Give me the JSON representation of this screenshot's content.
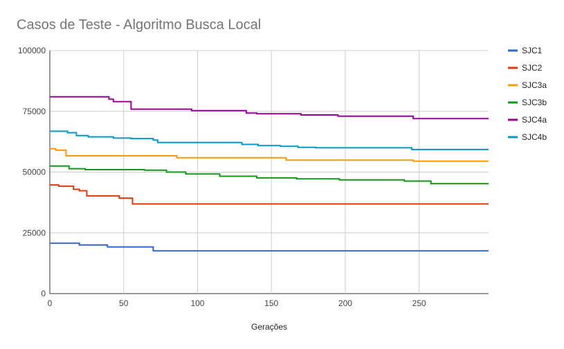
{
  "chart_data": {
    "type": "line",
    "title": "Casos de Teste - Algoritmo Busca Local",
    "xlabel": "Gerações",
    "ylabel": "",
    "xlim": [
      0,
      297
    ],
    "ylim": [
      0,
      100000
    ],
    "x_ticks": [
      0,
      50,
      100,
      150,
      200,
      250
    ],
    "y_ticks": [
      0,
      25000,
      50000,
      75000,
      100000
    ],
    "grid": true,
    "legend_position": "right",
    "series": [
      {
        "name": "SJC1",
        "color": "#3366cc",
        "points": [
          [
            0,
            20700
          ],
          [
            20,
            20700
          ],
          [
            20,
            20000
          ],
          [
            39,
            20000
          ],
          [
            39,
            19200
          ],
          [
            70,
            19200
          ],
          [
            70,
            17600
          ],
          [
            297,
            17600
          ]
        ]
      },
      {
        "name": "SJC2",
        "color": "#dc3912",
        "points": [
          [
            0,
            44700
          ],
          [
            6,
            44700
          ],
          [
            6,
            44200
          ],
          [
            16,
            44200
          ],
          [
            16,
            42900
          ],
          [
            20,
            42900
          ],
          [
            20,
            42300
          ],
          [
            25,
            42300
          ],
          [
            25,
            40200
          ],
          [
            47,
            40200
          ],
          [
            47,
            39300
          ],
          [
            56,
            39300
          ],
          [
            56,
            36900
          ],
          [
            297,
            36900
          ]
        ]
      },
      {
        "name": "SJC3a",
        "color": "#ff9900",
        "points": [
          [
            0,
            59600
          ],
          [
            4,
            59600
          ],
          [
            4,
            59000
          ],
          [
            11,
            59000
          ],
          [
            11,
            56700
          ],
          [
            86,
            56700
          ],
          [
            86,
            55900
          ],
          [
            160,
            55900
          ],
          [
            160,
            54900
          ],
          [
            246,
            54900
          ],
          [
            246,
            54500
          ],
          [
            297,
            54500
          ]
        ]
      },
      {
        "name": "SJC3b",
        "color": "#109618",
        "points": [
          [
            0,
            52500
          ],
          [
            13,
            52500
          ],
          [
            13,
            51400
          ],
          [
            24,
            51400
          ],
          [
            24,
            51000
          ],
          [
            64,
            51000
          ],
          [
            64,
            50800
          ],
          [
            79,
            50800
          ],
          [
            79,
            50000
          ],
          [
            92,
            50000
          ],
          [
            92,
            49200
          ],
          [
            115,
            49200
          ],
          [
            115,
            48300
          ],
          [
            140,
            48300
          ],
          [
            140,
            47600
          ],
          [
            167,
            47600
          ],
          [
            167,
            47200
          ],
          [
            196,
            47200
          ],
          [
            196,
            46800
          ],
          [
            240,
            46800
          ],
          [
            240,
            46300
          ],
          [
            258,
            46300
          ],
          [
            258,
            45200
          ],
          [
            297,
            45200
          ]
        ]
      },
      {
        "name": "SJC4a",
        "color": "#990099",
        "points": [
          [
            0,
            81000
          ],
          [
            40,
            81000
          ],
          [
            40,
            80000
          ],
          [
            43,
            80000
          ],
          [
            43,
            79000
          ],
          [
            55,
            79000
          ],
          [
            55,
            75900
          ],
          [
            96,
            75900
          ],
          [
            96,
            75300
          ],
          [
            133,
            75300
          ],
          [
            133,
            74300
          ],
          [
            140,
            74300
          ],
          [
            140,
            74000
          ],
          [
            170,
            74000
          ],
          [
            170,
            73500
          ],
          [
            195,
            73500
          ],
          [
            195,
            73000
          ],
          [
            246,
            73000
          ],
          [
            246,
            72000
          ],
          [
            297,
            72000
          ]
        ]
      },
      {
        "name": "SJC4b",
        "color": "#0099c6",
        "points": [
          [
            0,
            66800
          ],
          [
            12,
            66800
          ],
          [
            12,
            66200
          ],
          [
            18,
            66200
          ],
          [
            18,
            65000
          ],
          [
            26,
            65000
          ],
          [
            26,
            64500
          ],
          [
            43,
            64500
          ],
          [
            43,
            64000
          ],
          [
            55,
            64000
          ],
          [
            55,
            63800
          ],
          [
            70,
            63800
          ],
          [
            70,
            63200
          ],
          [
            73,
            63200
          ],
          [
            73,
            62200
          ],
          [
            130,
            62200
          ],
          [
            130,
            61400
          ],
          [
            141,
            61400
          ],
          [
            141,
            60900
          ],
          [
            156,
            60900
          ],
          [
            156,
            60600
          ],
          [
            168,
            60600
          ],
          [
            168,
            60200
          ],
          [
            180,
            60200
          ],
          [
            180,
            60000
          ],
          [
            245,
            60000
          ],
          [
            245,
            59300
          ],
          [
            297,
            59300
          ]
        ]
      }
    ]
  }
}
